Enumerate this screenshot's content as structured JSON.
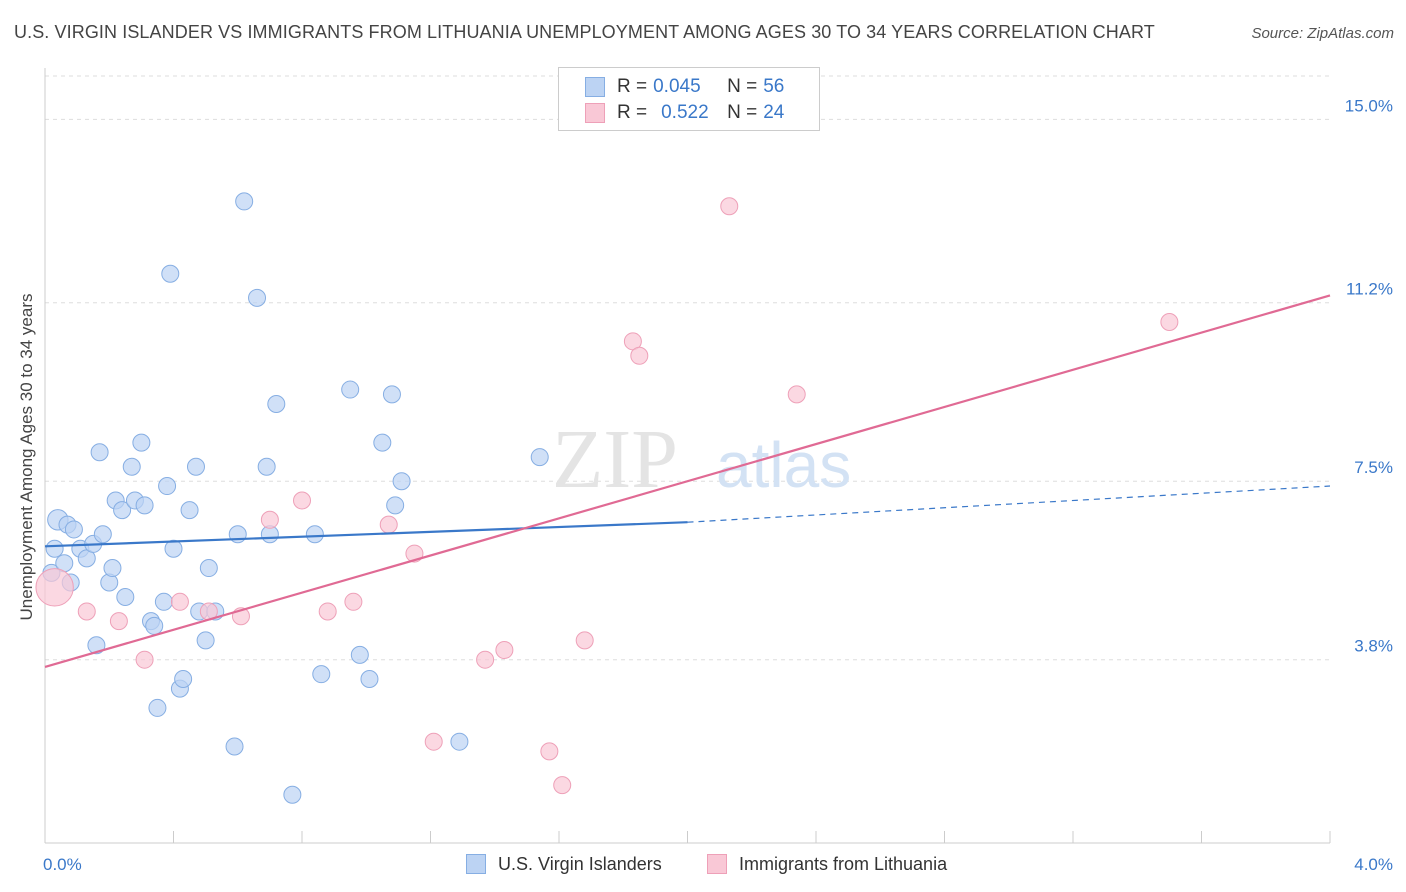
{
  "title": "U.S. VIRGIN ISLANDER VS IMMIGRANTS FROM LITHUANIA UNEMPLOYMENT AMONG AGES 30 TO 34 YEARS CORRELATION CHART",
  "source": "Source: ZipAtlas.com",
  "watermark": {
    "zip": "ZIP",
    "atlas": "atlas"
  },
  "legend": {
    "rows": [
      {
        "r_label": "R =",
        "r_value": "0.045",
        "n_label": "N =",
        "n_value": "56"
      },
      {
        "r_label": "R =",
        "r_value": "0.522",
        "n_label": "N =",
        "n_value": "24"
      }
    ]
  },
  "bottom_legend": {
    "series1": "U.S. Virgin Islanders",
    "series2": "Immigrants from Lithuania"
  },
  "colors": {
    "blue_fill": "#bcd3f3",
    "blue_stroke": "#86aee3",
    "blue_line": "#3a78c9",
    "pink_fill": "#f9c8d6",
    "pink_stroke": "#eea0b8",
    "pink_line": "#e06a94",
    "tick_text": "#3a78c9",
    "grid": "#dddddd"
  },
  "chart_data": {
    "type": "scatter",
    "title": "U.S. VIRGIN ISLANDER VS IMMIGRANTS FROM LITHUANIA UNEMPLOYMENT AMONG AGES 30 TO 34 YEARS CORRELATION CHART",
    "xlabel": "",
    "ylabel": "Unemployment Among Ages 30 to 34 years",
    "xlim": [
      0,
      4.0
    ],
    "ylim": [
      0,
      15.9
    ],
    "x_tick_labels": [
      {
        "value": 0.0,
        "label": "0.0%"
      },
      {
        "value": 4.0,
        "label": "4.0%"
      }
    ],
    "y_ticks": [
      {
        "value": 3.8,
        "label": "3.8%"
      },
      {
        "value": 7.5,
        "label": "7.5%"
      },
      {
        "value": 11.2,
        "label": "11.2%"
      },
      {
        "value": 15.0,
        "label": "15.0%"
      }
    ],
    "x_minor_ticks": [
      0.4,
      0.8,
      1.2,
      1.6,
      2.0,
      2.4,
      2.8,
      3.2,
      3.6,
      4.0
    ],
    "grid": true,
    "legend_position": "top-center",
    "series": [
      {
        "name": "U.S. Virgin Islanders",
        "color": "#86aee3",
        "r": 0.045,
        "n": 56,
        "trend": {
          "x0": 0.0,
          "y0": 6.15,
          "x1": 2.0,
          "y1": 6.65,
          "dash_x1": 4.0,
          "dash_y1": 7.4
        },
        "points": [
          [
            0.02,
            5.6,
            1.0
          ],
          [
            0.03,
            6.1,
            1.0
          ],
          [
            0.04,
            6.7,
            1.2
          ],
          [
            0.06,
            5.8,
            1.0
          ],
          [
            0.07,
            6.6,
            1.0
          ],
          [
            0.08,
            5.4,
            1.0
          ],
          [
            0.09,
            6.5,
            1.0
          ],
          [
            0.11,
            6.1,
            1.0
          ],
          [
            0.13,
            5.9,
            1.0
          ],
          [
            0.15,
            6.2,
            1.0
          ],
          [
            0.16,
            4.1,
            1.0
          ],
          [
            0.17,
            8.1,
            1.0
          ],
          [
            0.18,
            6.4,
            1.0
          ],
          [
            0.2,
            5.4,
            1.0
          ],
          [
            0.21,
            5.7,
            1.0
          ],
          [
            0.22,
            7.1,
            1.0
          ],
          [
            0.24,
            6.9,
            1.0
          ],
          [
            0.25,
            5.1,
            1.0
          ],
          [
            0.27,
            7.8,
            1.0
          ],
          [
            0.28,
            7.1,
            1.0
          ],
          [
            0.3,
            8.3,
            1.0
          ],
          [
            0.31,
            7.0,
            1.0
          ],
          [
            0.33,
            4.6,
            1.0
          ],
          [
            0.34,
            4.5,
            1.0
          ],
          [
            0.35,
            2.8,
            1.0
          ],
          [
            0.37,
            5.0,
            1.0
          ],
          [
            0.38,
            7.4,
            1.0
          ],
          [
            0.39,
            11.8,
            1.0
          ],
          [
            0.4,
            6.1,
            1.0
          ],
          [
            0.42,
            3.2,
            1.0
          ],
          [
            0.43,
            3.4,
            1.0
          ],
          [
            0.45,
            6.9,
            1.0
          ],
          [
            0.47,
            7.8,
            1.0
          ],
          [
            0.48,
            4.8,
            1.0
          ],
          [
            0.5,
            4.2,
            1.0
          ],
          [
            0.51,
            5.7,
            1.0
          ],
          [
            0.53,
            4.8,
            1.0
          ],
          [
            0.59,
            2.0,
            1.0
          ],
          [
            0.6,
            6.4,
            1.0
          ],
          [
            0.62,
            13.3,
            1.0
          ],
          [
            0.66,
            11.3,
            1.0
          ],
          [
            0.69,
            7.8,
            1.0
          ],
          [
            0.7,
            6.4,
            1.0
          ],
          [
            0.72,
            9.1,
            1.0
          ],
          [
            0.77,
            1.0,
            1.0
          ],
          [
            0.84,
            6.4,
            1.0
          ],
          [
            0.86,
            3.5,
            1.0
          ],
          [
            0.95,
            9.4,
            1.0
          ],
          [
            0.98,
            3.9,
            1.0
          ],
          [
            1.01,
            3.4,
            1.0
          ],
          [
            1.05,
            8.3,
            1.0
          ],
          [
            1.08,
            9.3,
            1.0
          ],
          [
            1.09,
            7.0,
            1.0
          ],
          [
            1.11,
            7.5,
            1.0
          ],
          [
            1.29,
            2.1,
            1.0
          ],
          [
            1.54,
            8.0,
            1.0
          ]
        ]
      },
      {
        "name": "Immigrants from Lithuania",
        "color": "#eea0b8",
        "r": 0.522,
        "n": 24,
        "trend": {
          "x0": 0.0,
          "y0": 3.65,
          "x1": 4.0,
          "y1": 11.35
        },
        "points": [
          [
            0.03,
            5.3,
            2.2
          ],
          [
            0.13,
            4.8,
            1.0
          ],
          [
            0.23,
            4.6,
            1.0
          ],
          [
            0.31,
            3.8,
            1.0
          ],
          [
            0.42,
            5.0,
            1.0
          ],
          [
            0.51,
            4.8,
            1.0
          ],
          [
            0.61,
            4.7,
            1.0
          ],
          [
            0.7,
            6.7,
            1.0
          ],
          [
            0.8,
            7.1,
            1.0
          ],
          [
            0.88,
            4.8,
            1.0
          ],
          [
            0.96,
            5.0,
            1.0
          ],
          [
            1.07,
            6.6,
            1.0
          ],
          [
            1.15,
            6.0,
            1.0
          ],
          [
            1.21,
            2.1,
            1.0
          ],
          [
            1.37,
            3.8,
            1.0
          ],
          [
            1.43,
            4.0,
            1.0
          ],
          [
            1.57,
            1.9,
            1.0
          ],
          [
            1.61,
            1.2,
            1.0
          ],
          [
            1.68,
            4.2,
            1.0
          ],
          [
            1.83,
            10.4,
            1.0
          ],
          [
            1.85,
            10.1,
            1.0
          ],
          [
            2.13,
            13.2,
            1.0
          ],
          [
            2.34,
            9.3,
            1.0
          ],
          [
            3.5,
            10.8,
            1.0
          ]
        ]
      }
    ]
  }
}
